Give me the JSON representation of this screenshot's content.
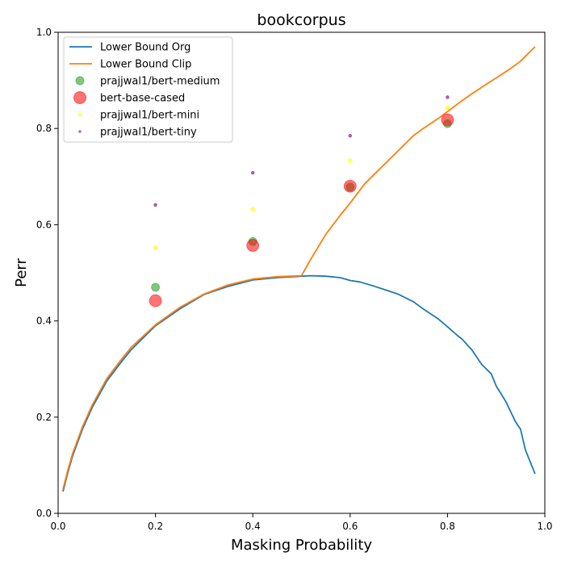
{
  "chart_data": {
    "type": "line",
    "title": "bookcorpus",
    "xlabel": "Masking Probability",
    "ylabel": "Perr",
    "xlim": [
      0.0,
      1.0
    ],
    "ylim": [
      0.0,
      1.0
    ],
    "xticks": [
      "0.0",
      "0.2",
      "0.4",
      "0.6",
      "0.8",
      "1.0"
    ],
    "yticks": [
      "0.0",
      "0.2",
      "0.4",
      "0.6",
      "0.8",
      "1.0"
    ],
    "grid": false,
    "legend_position": "top-left",
    "lines": [
      {
        "name": "Lower Bound Org",
        "color": "#1f77b4",
        "points": [
          [
            0.01,
            0.045
          ],
          [
            0.02,
            0.085
          ],
          [
            0.03,
            0.12
          ],
          [
            0.05,
            0.175
          ],
          [
            0.07,
            0.22
          ],
          [
            0.1,
            0.275
          ],
          [
            0.13,
            0.315
          ],
          [
            0.15,
            0.34
          ],
          [
            0.2,
            0.39
          ],
          [
            0.25,
            0.425
          ],
          [
            0.3,
            0.455
          ],
          [
            0.35,
            0.472
          ],
          [
            0.4,
            0.485
          ],
          [
            0.45,
            0.49
          ],
          [
            0.5,
            0.493
          ],
          [
            0.52,
            0.494
          ],
          [
            0.55,
            0.493
          ],
          [
            0.58,
            0.49
          ],
          [
            0.6,
            0.484
          ],
          [
            0.62,
            0.481
          ],
          [
            0.65,
            0.472
          ],
          [
            0.68,
            0.462
          ],
          [
            0.7,
            0.455
          ],
          [
            0.73,
            0.44
          ],
          [
            0.75,
            0.425
          ],
          [
            0.78,
            0.405
          ],
          [
            0.8,
            0.388
          ],
          [
            0.82,
            0.37
          ],
          [
            0.83,
            0.362
          ],
          [
            0.85,
            0.34
          ],
          [
            0.87,
            0.31
          ],
          [
            0.88,
            0.3
          ],
          [
            0.89,
            0.29
          ],
          [
            0.9,
            0.265
          ],
          [
            0.92,
            0.232
          ],
          [
            0.94,
            0.19
          ],
          [
            0.95,
            0.175
          ],
          [
            0.96,
            0.132
          ],
          [
            0.98,
            0.082
          ]
        ]
      },
      {
        "name": "Lower Bound Clip",
        "color": "#ff7f0e",
        "points": [
          [
            0.01,
            0.05
          ],
          [
            0.02,
            0.09
          ],
          [
            0.03,
            0.125
          ],
          [
            0.05,
            0.18
          ],
          [
            0.07,
            0.225
          ],
          [
            0.1,
            0.28
          ],
          [
            0.13,
            0.32
          ],
          [
            0.15,
            0.345
          ],
          [
            0.2,
            0.392
          ],
          [
            0.25,
            0.428
          ],
          [
            0.3,
            0.456
          ],
          [
            0.35,
            0.475
          ],
          [
            0.4,
            0.487
          ],
          [
            0.45,
            0.492
          ],
          [
            0.5,
            0.494
          ],
          [
            0.52,
            0.53
          ],
          [
            0.55,
            0.58
          ],
          [
            0.58,
            0.62
          ],
          [
            0.6,
            0.645
          ],
          [
            0.63,
            0.685
          ],
          [
            0.65,
            0.705
          ],
          [
            0.68,
            0.735
          ],
          [
            0.7,
            0.755
          ],
          [
            0.73,
            0.785
          ],
          [
            0.75,
            0.8
          ],
          [
            0.78,
            0.82
          ],
          [
            0.8,
            0.835
          ],
          [
            0.83,
            0.858
          ],
          [
            0.85,
            0.872
          ],
          [
            0.88,
            0.892
          ],
          [
            0.9,
            0.905
          ],
          [
            0.93,
            0.925
          ],
          [
            0.95,
            0.94
          ],
          [
            0.98,
            0.97
          ]
        ]
      }
    ],
    "series": [
      {
        "name": "prajjwal1/bert-medium",
        "color": "#2ca02c",
        "size": 5,
        "opacity": 0.6,
        "x": [
          0.2,
          0.4,
          0.6,
          0.8
        ],
        "y": [
          0.47,
          0.565,
          0.678,
          0.81
        ]
      },
      {
        "name": "bert-base-cased",
        "color": "#ff0000",
        "size": 7.5,
        "opacity": 0.55,
        "x": [
          0.2,
          0.4,
          0.6,
          0.8
        ],
        "y": [
          0.442,
          0.557,
          0.68,
          0.818
        ]
      },
      {
        "name": "prajjwal1/bert-mini",
        "color": "#ffff00",
        "size": 2.5,
        "opacity": 0.6,
        "x": [
          0.2,
          0.4,
          0.6,
          0.8
        ],
        "y": [
          0.552,
          0.632,
          0.733,
          0.843
        ]
      },
      {
        "name": "prajjwal1/bert-tiny",
        "color": "#800080",
        "size": 1.8,
        "opacity": 0.6,
        "x": [
          0.2,
          0.4,
          0.6,
          0.8
        ],
        "y": [
          0.641,
          0.708,
          0.785,
          0.865
        ]
      }
    ]
  }
}
